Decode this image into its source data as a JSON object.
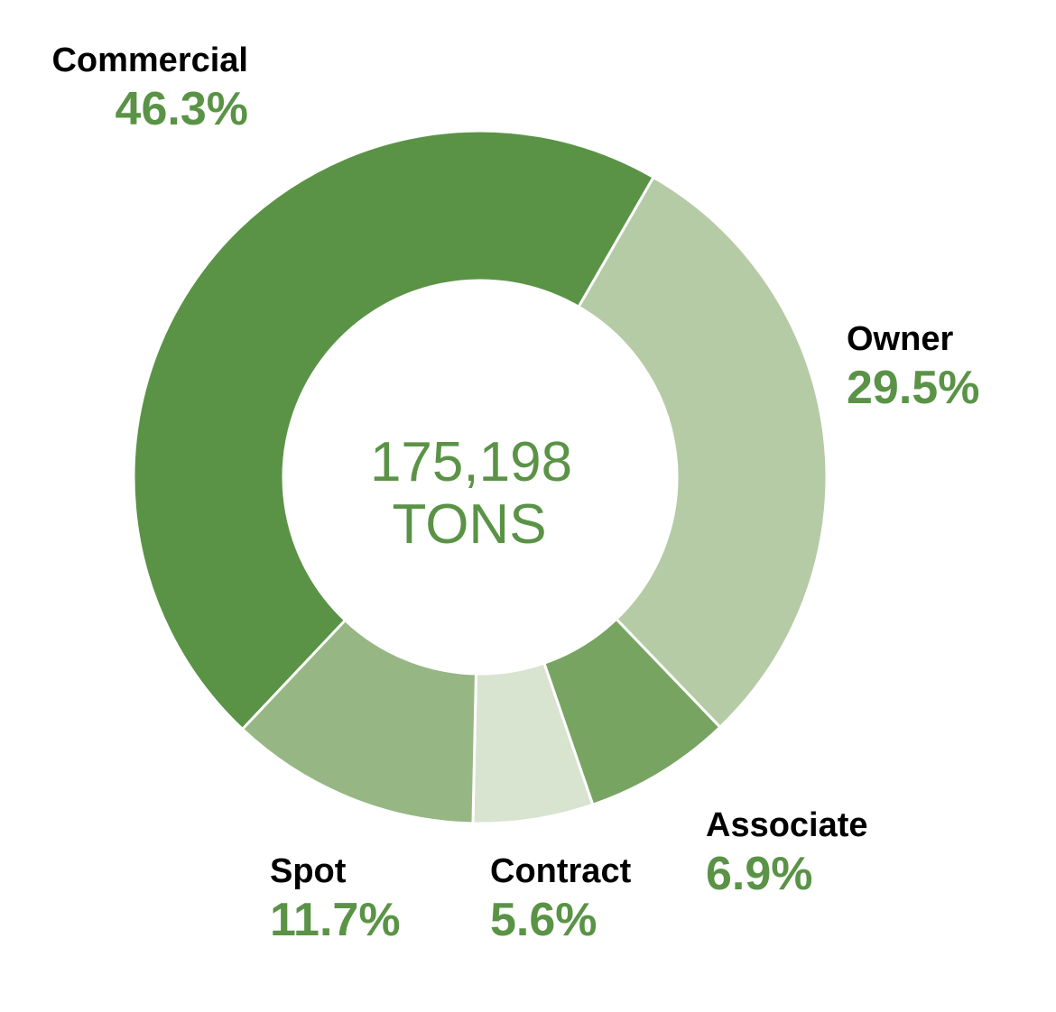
{
  "chart_data": {
    "type": "pie",
    "variant": "donut",
    "center_value": "175,198",
    "center_unit": "TONS",
    "slices": [
      {
        "name": "Commercial",
        "value": 46.3,
        "label": "46.3%",
        "color": "#5a9346"
      },
      {
        "name": "Owner",
        "value": 29.5,
        "label": "29.5%",
        "color": "#b5cba6"
      },
      {
        "name": "Associate",
        "value": 6.9,
        "label": "6.9%",
        "color": "#78a462"
      },
      {
        "name": "Contract",
        "value": 5.6,
        "label": "5.6%",
        "color": "#d8e4cf"
      },
      {
        "name": "Spot",
        "value": 11.7,
        "label": "11.7%",
        "color": "#96b784"
      }
    ],
    "label_color": "#5a9346",
    "legend": "none"
  }
}
